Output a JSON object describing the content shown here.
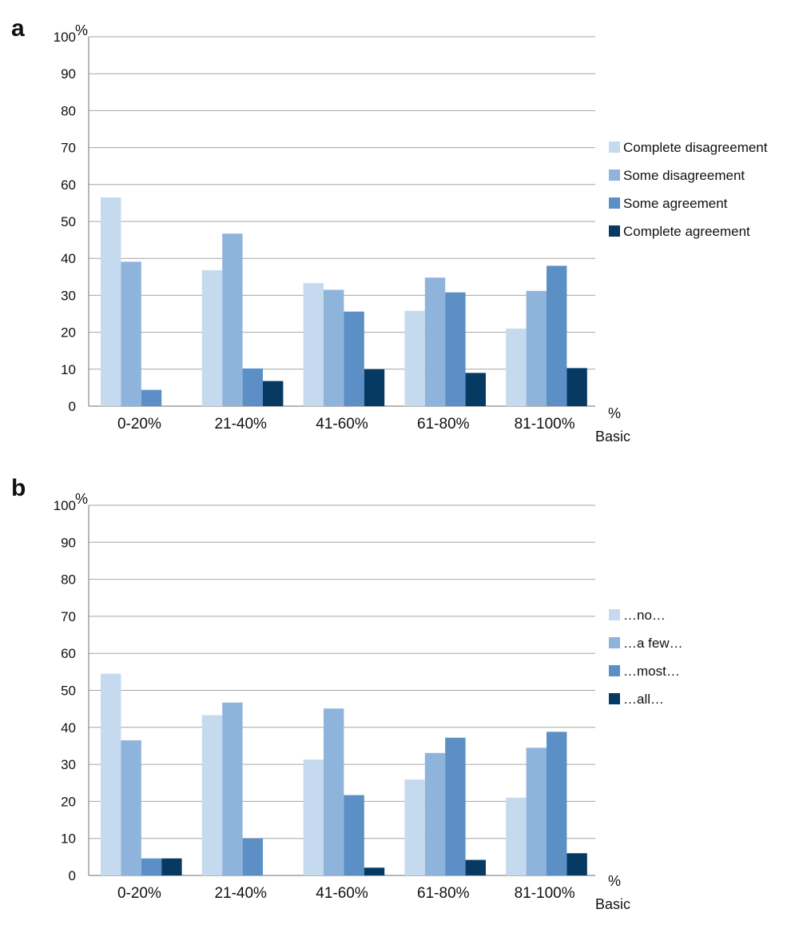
{
  "colors": {
    "series": [
      "#c6daef",
      "#8fb4dc",
      "#5b8fc6",
      "#063a63"
    ],
    "grid": "#a6a6a6",
    "axis": "#8a8a8a"
  },
  "chart_data": [
    {
      "type": "bar",
      "panel_label": "a",
      "y_unit": "%",
      "x_unit_line1": "%",
      "x_unit_line2": "Basic",
      "categories": [
        "0-20%",
        "21-40%",
        "41-60%",
        "61-80%",
        "81-100%"
      ],
      "ylim": [
        0,
        100
      ],
      "yticks": [
        0,
        10,
        20,
        30,
        40,
        50,
        60,
        70,
        80,
        90,
        100
      ],
      "grid": true,
      "legend_position": "right",
      "series": [
        {
          "name": "Complete disagreement",
          "values": [
            56.5,
            36.8,
            33.3,
            25.8,
            21.0
          ]
        },
        {
          "name": "Some disagreement",
          "values": [
            39.1,
            46.7,
            31.5,
            34.8,
            31.2
          ]
        },
        {
          "name": "Some agreement",
          "values": [
            4.4,
            10.2,
            25.6,
            30.8,
            38.0
          ]
        },
        {
          "name": "Complete agreement",
          "values": [
            0,
            6.8,
            10.0,
            9.0,
            10.3
          ]
        }
      ]
    },
    {
      "type": "bar",
      "panel_label": "b",
      "y_unit": "%",
      "x_unit_line1": "%",
      "x_unit_line2": "Basic",
      "categories": [
        "0-20%",
        "21-40%",
        "41-60%",
        "61-80%",
        "81-100%"
      ],
      "ylim": [
        0,
        100
      ],
      "yticks": [
        0,
        10,
        20,
        30,
        40,
        50,
        60,
        70,
        80,
        90,
        100
      ],
      "grid": true,
      "legend_position": "right",
      "series": [
        {
          "name": "…no…",
          "values": [
            54.5,
            43.3,
            31.3,
            25.9,
            21.0
          ]
        },
        {
          "name": "…a few…",
          "values": [
            36.5,
            46.7,
            45.1,
            33.1,
            34.5
          ]
        },
        {
          "name": "…most…",
          "values": [
            4.6,
            10.0,
            21.7,
            37.2,
            38.8
          ]
        },
        {
          "name": "…all…",
          "values": [
            4.6,
            0,
            2.1,
            4.2,
            6.0
          ]
        }
      ]
    }
  ]
}
